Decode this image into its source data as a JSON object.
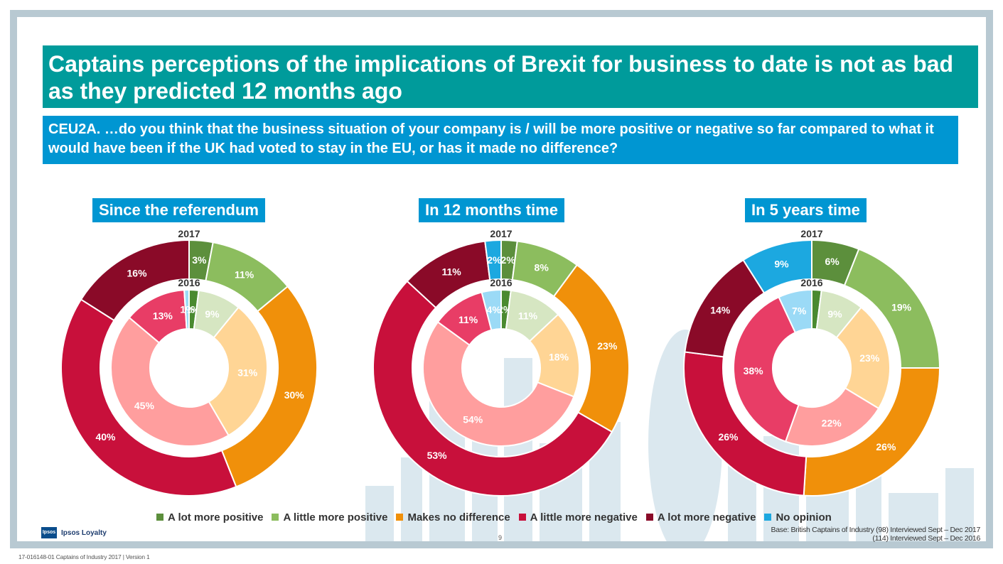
{
  "title": "Captains perceptions of the implications of Brexit for business to date is not as bad as they predicted 12 months ago",
  "question": "CEU2A. …do you think that the business situation of your company is / will be more positive or negative so far compared to what it would have been if the UK had voted to stay in the EU, or has it made no difference?",
  "base_note_line1": "Base: British Captains of Industry (98) Interviewed Sept – Dec 2017",
  "base_note_line2": "(114) Interviewed Sept – Dec 2016",
  "page_number": "9",
  "footer": "17-016148-01 Captains of Industry 2017 | Version 1",
  "logo": {
    "mark": "Ipsos",
    "text": "Ipsos Loyalty"
  },
  "colors": {
    "outer": [
      "#5c8f3c",
      "#8cbd5e",
      "#f0900a",
      "#c8103b",
      "#8a0a28",
      "#1ca8e0"
    ],
    "inner": [
      "#4a8a30",
      "#d6e6c2",
      "#ffd595",
      "#ff9e9e",
      "#e83d66",
      "#9bdaf6"
    ]
  },
  "chart_data": [
    {
      "type": "donut",
      "title": "Since the referendum",
      "outer_label": "2017",
      "inner_label": "2016",
      "categories": [
        "A lot more positive",
        "A little more positive",
        "Makes no difference",
        "A little more negative",
        "A lot more negative",
        "No opinion"
      ],
      "series": [
        {
          "name": "2017",
          "values": [
            3,
            11,
            30,
            40,
            16,
            0
          ],
          "labels": [
            "3%",
            "11%",
            "30%",
            "40%",
            "16%",
            ""
          ]
        },
        {
          "name": "2016",
          "values": [
            2,
            9,
            31,
            45,
            13,
            1
          ],
          "labels": [
            "2%",
            "9%",
            "31%",
            "45%",
            "13%",
            "1%"
          ]
        }
      ]
    },
    {
      "type": "donut",
      "title": "In 12 months time",
      "outer_label": "2017",
      "inner_label": "2016",
      "categories": [
        "A lot more positive",
        "A little more positive",
        "Makes no difference",
        "A little more negative",
        "A lot more negative",
        "No opinion"
      ],
      "series": [
        {
          "name": "2017",
          "values": [
            2,
            8,
            23,
            53,
            11,
            2
          ],
          "labels": [
            "2%",
            "8%",
            "23%",
            "53%",
            "11%",
            "2%"
          ]
        },
        {
          "name": "2016",
          "values": [
            2,
            11,
            18,
            54,
            11,
            4
          ],
          "labels": [
            "2%",
            "11%",
            "18%",
            "54%",
            "11%",
            "4%"
          ]
        }
      ]
    },
    {
      "type": "donut",
      "title": "In 5 years time",
      "outer_label": "2017",
      "inner_label": "2016",
      "categories": [
        "A lot more positive",
        "A little more positive",
        "Makes no difference",
        "A little more negative",
        "A lot more negative",
        "No opinion"
      ],
      "series": [
        {
          "name": "2017",
          "values": [
            6,
            19,
            26,
            26,
            14,
            9
          ],
          "labels": [
            "6%",
            "19%",
            "26%",
            "26%",
            "14%",
            "9%"
          ]
        },
        {
          "name": "2016",
          "values": [
            2,
            9,
            23,
            22,
            38,
            7
          ],
          "labels": [
            "",
            "9%",
            "23%",
            "22%",
            "38%",
            "7%"
          ]
        }
      ]
    }
  ],
  "legend": [
    {
      "label": "A lot more positive",
      "color": "#5c8f3c"
    },
    {
      "label": "A little more positive",
      "color": "#8cbd5e"
    },
    {
      "label": "Makes no difference",
      "color": "#f0900a"
    },
    {
      "label": "A little more negative",
      "color": "#c8103b"
    },
    {
      "label": "A lot more negative",
      "color": "#8a0a28"
    },
    {
      "label": "No opinion",
      "color": "#1ca8e0"
    }
  ]
}
